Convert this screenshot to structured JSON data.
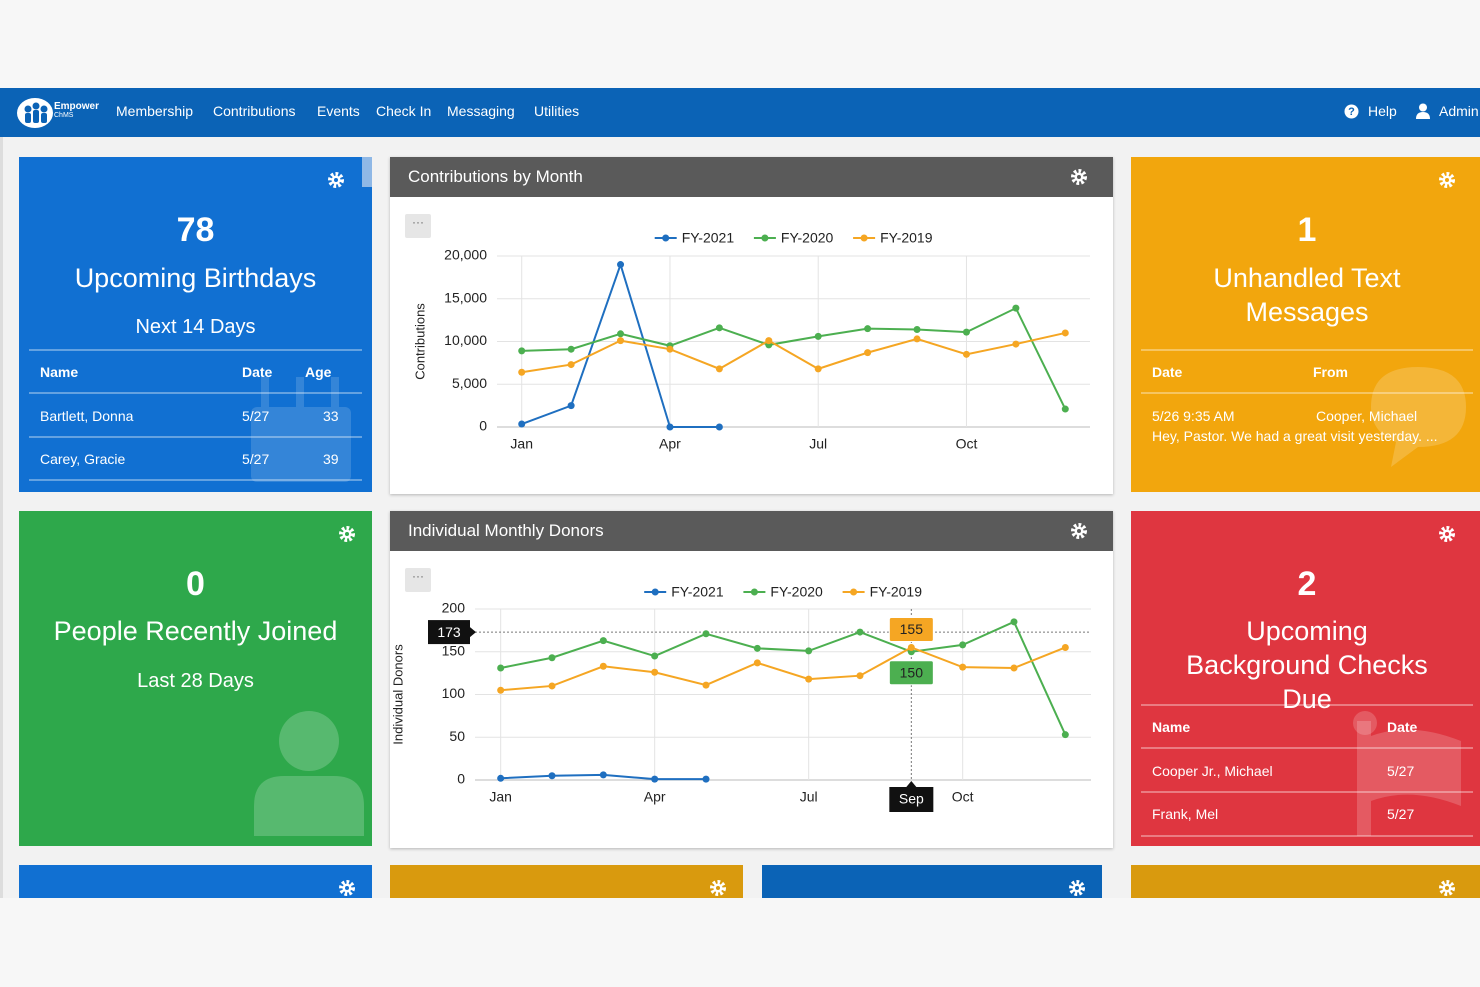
{
  "nav": {
    "brand": [
      "Empower",
      "ChMS"
    ],
    "items": [
      "Membership",
      "Contributions",
      "Events",
      "Check In",
      "Messaging",
      "Utilities"
    ],
    "help": "Help",
    "admin": "Admin"
  },
  "widgets": {
    "birthdays": {
      "count": 78,
      "title": "Upcoming Birthdays",
      "subtitle": "Next 14 Days",
      "columns": [
        "Name",
        "Date",
        "Age"
      ],
      "rows": [
        [
          "Bartlett, Donna",
          "5/27",
          33
        ],
        [
          "Carey, Gracie",
          "5/27",
          39
        ]
      ]
    },
    "texts": {
      "count": 1,
      "title": "Unhandled Text Messages",
      "columns": [
        "Date",
        "From"
      ],
      "rows": [
        {
          "date": "5/26 9:35 AM",
          "from": "Cooper, Michael",
          "message": "Hey, Pastor. We had a great visit yesterday. ..."
        }
      ]
    },
    "joined": {
      "count": 0,
      "title": "People Recently Joined",
      "subtitle": "Last 28 Days"
    },
    "background": {
      "count": 2,
      "title": "Upcoming Background Checks Due",
      "columns": [
        "Name",
        "Date"
      ],
      "rows": [
        [
          "Cooper Jr., Michael",
          "5/27"
        ],
        [
          "Frank, Mel",
          "5/27"
        ]
      ]
    }
  },
  "chart_data": [
    {
      "type": "line",
      "title": "Contributions by Month",
      "y_label": "Contributions",
      "categories": [
        "Jan",
        null,
        null,
        "Apr",
        null,
        null,
        "Jul",
        null,
        null,
        "Oct",
        null,
        null
      ],
      "series": [
        {
          "name": "FY-2021",
          "color": "#1f6fc0",
          "values": [
            350,
            2500,
            19000,
            0,
            0,
            null,
            null,
            null,
            null,
            null,
            null,
            null
          ]
        },
        {
          "name": "FY-2020",
          "color": "#4caf50",
          "values": [
            8900,
            9100,
            10900,
            9500,
            11600,
            9600,
            10600,
            11500,
            11400,
            11100,
            13900,
            2100
          ]
        },
        {
          "name": "FY-2019",
          "color": "#f5a623",
          "values": [
            6400,
            7300,
            10100,
            9100,
            6800,
            10100,
            6800,
            8700,
            10300,
            8500,
            9700,
            11000
          ]
        }
      ],
      "ylim": [
        0,
        20000
      ],
      "yticks": [
        0,
        {
          "value": 5000,
          "label": "5,000"
        },
        {
          "value": 10000,
          "label": "10,000"
        },
        {
          "value": 15000,
          "label": "15,000"
        },
        {
          "value": 20000,
          "label": "20,000"
        }
      ],
      "grid": true,
      "legend": "top"
    },
    {
      "type": "line",
      "title": "Individual Monthly Donors",
      "y_label": "Individual Donors",
      "categories": [
        "Jan",
        null,
        null,
        "Apr",
        null,
        null,
        "Jul",
        null,
        null,
        "Oct",
        null,
        null
      ],
      "series": [
        {
          "name": "FY-2021",
          "color": "#1f6fc0",
          "values": [
            2,
            5,
            6,
            1,
            1,
            null,
            null,
            null,
            null,
            null,
            null,
            null
          ]
        },
        {
          "name": "FY-2020",
          "color": "#4caf50",
          "values": [
            131,
            143,
            163,
            145,
            171,
            154,
            151,
            173,
            150,
            158,
            185,
            53
          ]
        },
        {
          "name": "FY-2019",
          "color": "#f5a623",
          "values": [
            105,
            110,
            133,
            126,
            111,
            137,
            118,
            122,
            155,
            132,
            131,
            155
          ]
        }
      ],
      "ylim": [
        0,
        200
      ],
      "yticks": [
        0,
        50,
        100,
        150,
        200
      ],
      "grid": true,
      "legend": "top",
      "crosshair": {
        "index": 8,
        "x_label": "Sep",
        "y": 173
      }
    }
  ]
}
